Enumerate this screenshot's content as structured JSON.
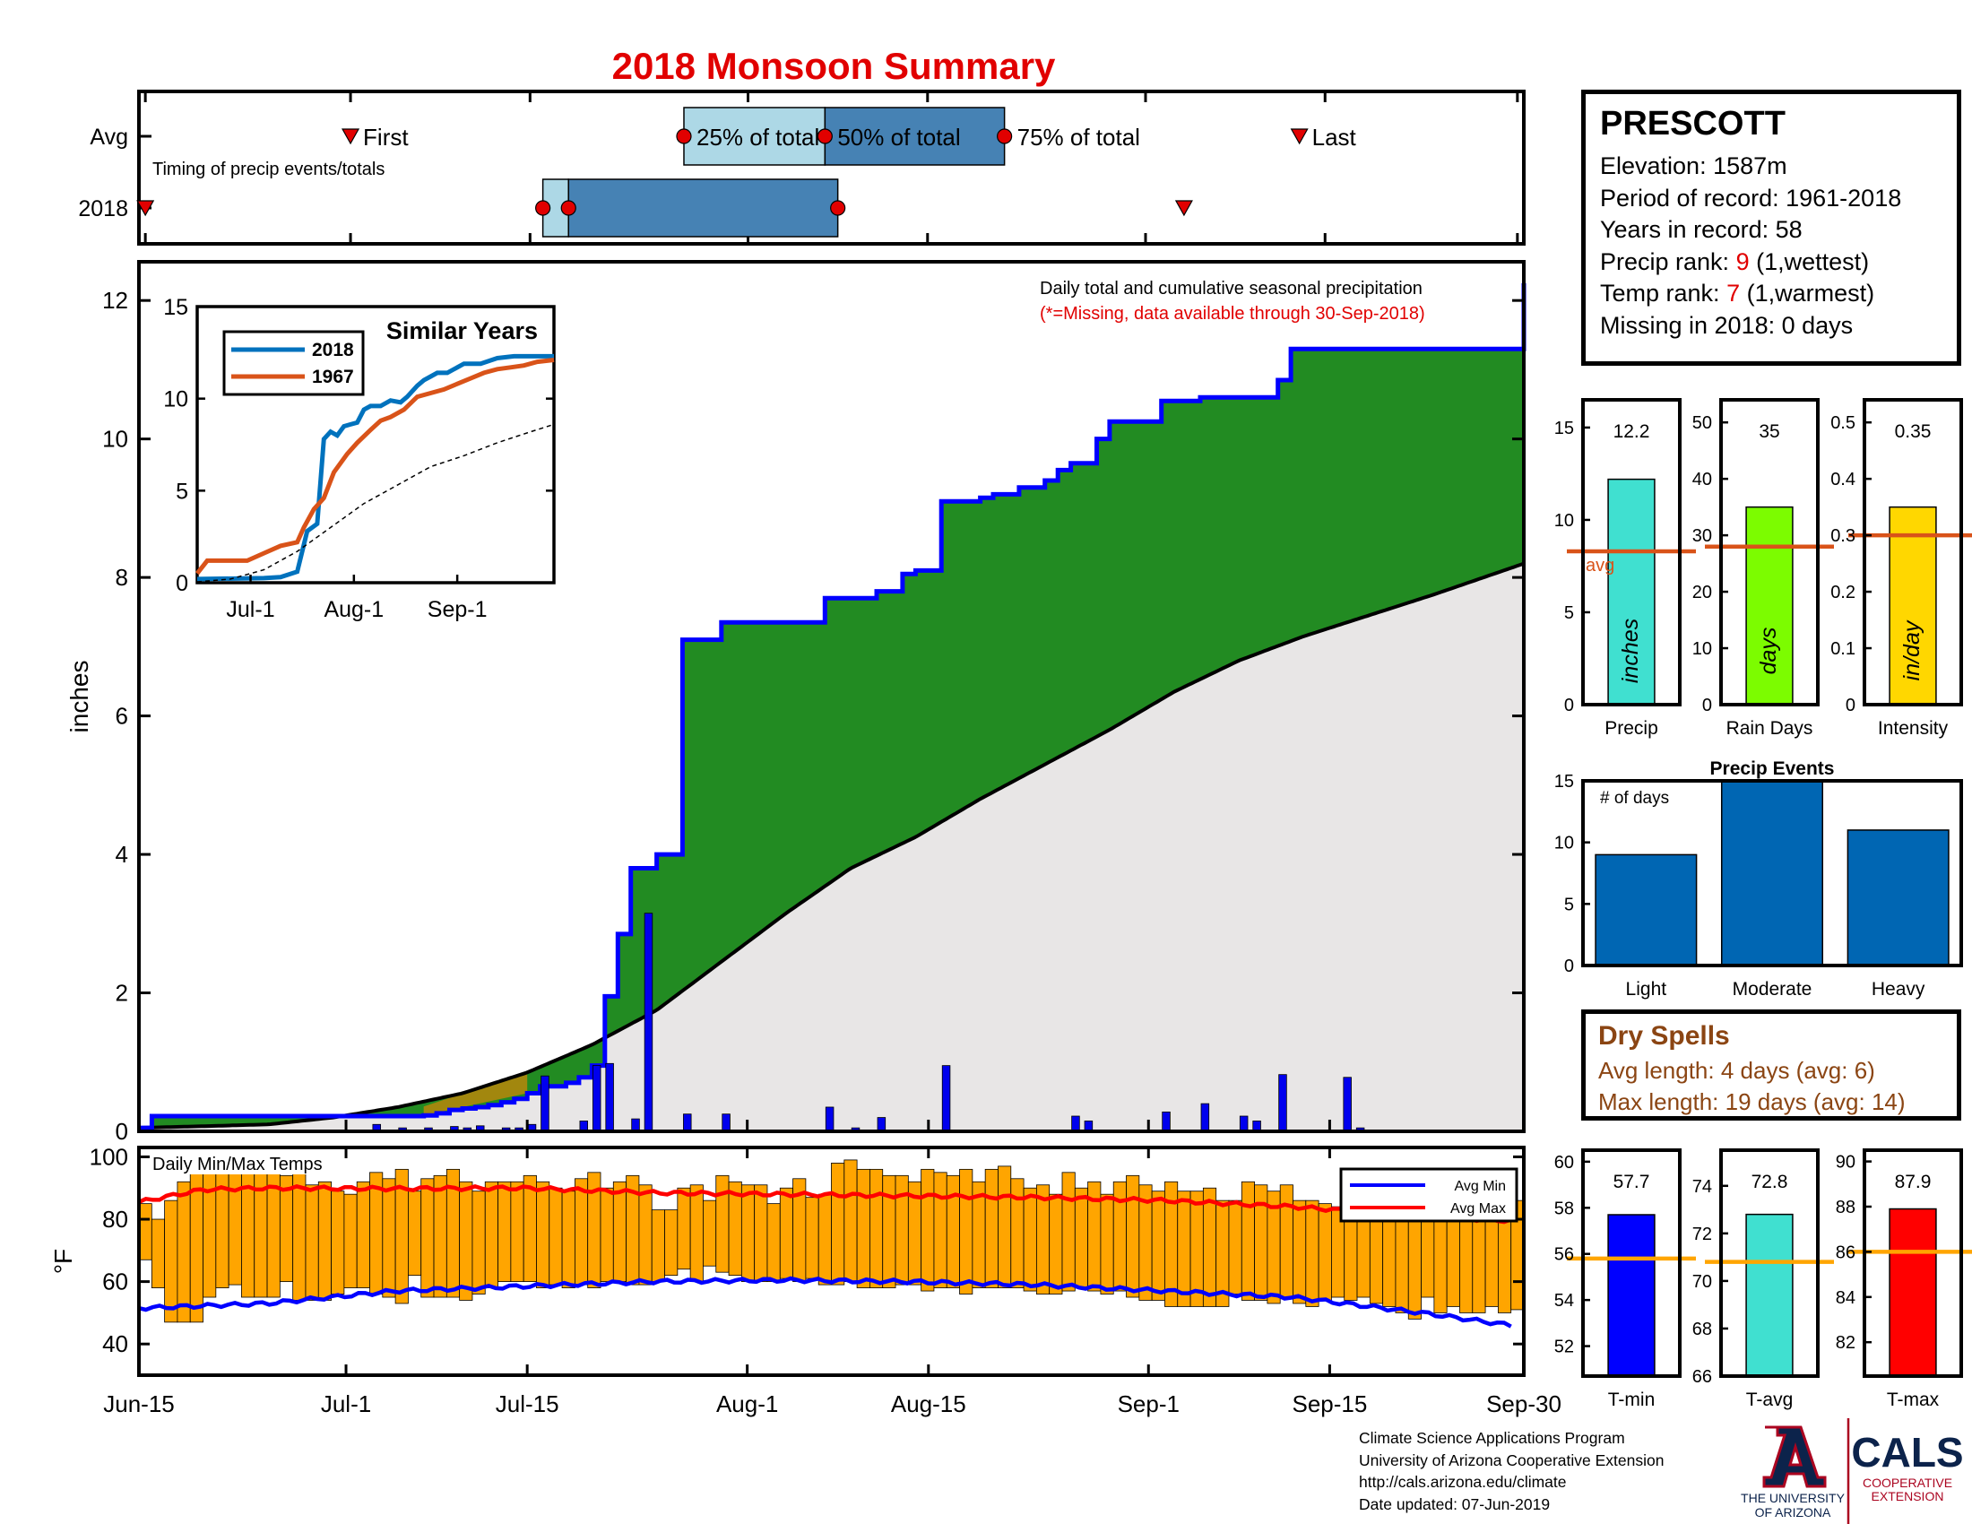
{
  "title": "2018 Monsoon Summary",
  "station": {
    "name": "PRESCOTT",
    "elevation": "Elevation: 1587m",
    "period": "Period of record: 1961-2018",
    "years": "Years in record: 58",
    "precip_rank_label": "Precip rank: ",
    "precip_rank": "9",
    "precip_rank_note": " (1,wettest)",
    "temp_rank_label": "Temp rank: ",
    "temp_rank": "7",
    "temp_rank_note": " (1,warmest)",
    "missing": "Missing in 2018: 0 days"
  },
  "colors": {
    "title_red": "#e10000",
    "green": "#228b22",
    "blue": "#0000ff",
    "orange": "#ffa500",
    "brown": "#8b4513",
    "bar_blue": "#0066b3",
    "light_blue": "#add8e6",
    "steel": "#4682b4"
  },
  "timing": {
    "row_labels": [
      "Avg",
      "2018"
    ],
    "note": "Timing of precip events/totals",
    "first_label": "First",
    "last_label": "Last",
    "p25_label": "25% of total",
    "p50_label": "50% of total",
    "p75_label": "75% of total",
    "avg": {
      "first": "Jul-1",
      "p25": "Jul-27",
      "p50": "Aug-7",
      "p75": "Aug-21",
      "last": "Sep-13"
    },
    "y2018": {
      "first": "Jun-15",
      "p25": "Jul-16",
      "p50": "Jul-18",
      "p75": "Aug-8",
      "last": "Sep-4"
    }
  },
  "main_chart": {
    "ylabel": "inches",
    "yticks": [
      0,
      2,
      4,
      6,
      8,
      10,
      12
    ],
    "xticks": [
      "Jun-15",
      "Jul-1",
      "Jul-15",
      "Aug-1",
      "Aug-15",
      "Sep-1",
      "Sep-15",
      "Sep-30"
    ],
    "note1": "Daily total and cumulative seasonal precipitation",
    "note2": "(*=Missing, data available through 30-Sep-2018)"
  },
  "chart_data": [
    {
      "type": "area",
      "title": "Daily total and cumulative seasonal precipitation",
      "ylabel": "inches",
      "ylim": [
        0,
        12.2
      ],
      "x_range": [
        "Jun-15",
        "Sep-30"
      ],
      "series": [
        {
          "name": "2018 cumulative",
          "x": [
            0,
            1,
            2,
            17,
            21,
            22,
            23,
            24,
            25,
            26,
            27,
            28,
            29,
            30,
            31,
            33,
            34,
            35,
            36,
            37,
            38,
            39,
            40,
            42,
            45,
            53,
            57,
            59,
            60,
            61,
            62,
            64,
            65,
            66,
            68,
            70,
            71,
            72,
            74,
            75,
            78,
            79,
            80,
            82,
            88,
            89,
            90,
            107
          ],
          "values": [
            0.05,
            0.22,
            0.22,
            0.22,
            0.22,
            0.23,
            0.26,
            0.31,
            0.33,
            0.35,
            0.38,
            0.42,
            0.47,
            0.55,
            0.65,
            0.7,
            0.78,
            0.95,
            1.95,
            2.85,
            3.8,
            3.8,
            4.0,
            7.1,
            7.35,
            7.7,
            7.8,
            8.05,
            8.1,
            8.1,
            9.1,
            9.1,
            9.15,
            9.2,
            9.3,
            9.4,
            9.55,
            9.65,
            10.0,
            10.25,
            10.25,
            10.55,
            10.55,
            10.6,
            10.85,
            11.3,
            11.3,
            12.25
          ]
        },
        {
          "name": "Average cumulative",
          "x": [
            0,
            10,
            15,
            20,
            25,
            30,
            35,
            40,
            45,
            50,
            55,
            60,
            65,
            70,
            75,
            80,
            85,
            90,
            95,
            100,
            107
          ],
          "values": [
            0.05,
            0.1,
            0.2,
            0.35,
            0.55,
            0.85,
            1.25,
            1.75,
            2.45,
            3.15,
            3.8,
            4.25,
            4.8,
            5.3,
            5.8,
            6.35,
            6.8,
            7.15,
            7.45,
            7.75,
            8.2
          ]
        },
        {
          "name": "Daily precip",
          "x": [
            18,
            20,
            22,
            24,
            25,
            26,
            28,
            29,
            30,
            31,
            34,
            35,
            36,
            38,
            39,
            42,
            45,
            53,
            55,
            57,
            62,
            72,
            73,
            79,
            82,
            85,
            86,
            88,
            93,
            94
          ],
          "values": [
            0.1,
            0.05,
            0.05,
            0.07,
            0.05,
            0.08,
            0.05,
            0.05,
            0.1,
            0.8,
            0.15,
            0.95,
            0.98,
            0.18,
            3.15,
            0.25,
            0.25,
            0.35,
            0.05,
            0.2,
            0.95,
            0.22,
            0.15,
            0.28,
            0.4,
            0.22,
            0.15,
            0.82,
            0.78,
            0.05
          ]
        }
      ]
    },
    {
      "type": "line",
      "title": "Similar Years",
      "ylim": [
        0,
        15
      ],
      "xticks": [
        "Jul-1",
        "Aug-1",
        "Sep-1"
      ],
      "series": [
        {
          "name": "2018",
          "x": [
            0,
            20,
            25,
            30,
            33,
            36,
            38,
            40,
            42,
            44,
            46,
            48,
            50,
            52,
            55,
            58,
            61,
            63,
            66,
            68,
            70,
            72,
            75,
            80,
            85,
            90,
            95,
            107
          ],
          "values": [
            0.2,
            0.25,
            0.3,
            0.6,
            2.8,
            3.2,
            7.8,
            8.2,
            8.0,
            8.5,
            8.6,
            8.7,
            9.4,
            9.6,
            9.6,
            9.9,
            9.8,
            10.1,
            10.7,
            11.0,
            11.2,
            11.4,
            11.4,
            11.9,
            11.9,
            12.2,
            12.3,
            12.3
          ]
        },
        {
          "name": "1967",
          "x": [
            0,
            3,
            8,
            15,
            20,
            25,
            30,
            32,
            35,
            38,
            41,
            45,
            48,
            52,
            55,
            58,
            62,
            66,
            70,
            74,
            78,
            82,
            86,
            90,
            94,
            98,
            102,
            107
          ],
          "values": [
            0.5,
            1.2,
            1.2,
            1.2,
            1.6,
            2.0,
            2.2,
            3.0,
            4.0,
            4.6,
            6.0,
            7.0,
            7.6,
            8.3,
            8.8,
            9.0,
            9.4,
            10.1,
            10.3,
            10.5,
            10.8,
            11.1,
            11.4,
            11.6,
            11.7,
            11.8,
            12.0,
            12.1
          ]
        },
        {
          "name": "Average",
          "x": [
            0,
            10,
            20,
            30,
            40,
            50,
            60,
            70,
            80,
            90,
            100,
            107
          ],
          "values": [
            0.05,
            0.2,
            0.7,
            1.7,
            3.0,
            4.3,
            5.3,
            6.3,
            6.9,
            7.6,
            8.2,
            8.6
          ]
        }
      ]
    },
    {
      "type": "bar",
      "title": "Daily Min/Max Temps",
      "ylabel": "°F",
      "ylim": [
        30,
        103
      ],
      "yticks": [
        40,
        60,
        80,
        100
      ],
      "legend": [
        "Avg Min",
        "Avg Max"
      ],
      "legend_position": "top-right",
      "series": [
        {
          "name": "Daily Max",
          "values": [
            85,
            80,
            86,
            92,
            97,
            98,
            96,
            95,
            99,
            96,
            97,
            94,
            95,
            91,
            92,
            89,
            88,
            92,
            95,
            93,
            96,
            89,
            93,
            94,
            96,
            92,
            89,
            92,
            92,
            92,
            94,
            92,
            90,
            89,
            93,
            95,
            90,
            92,
            94,
            91,
            83,
            83,
            90,
            91,
            86,
            94,
            92,
            91,
            91,
            85,
            90,
            93,
            87,
            88,
            98,
            99,
            96,
            96,
            94,
            94,
            92,
            96,
            95,
            94,
            96,
            92,
            96,
            97,
            93,
            90,
            91,
            88,
            95,
            90,
            92,
            88,
            92,
            94,
            91,
            89,
            92,
            89,
            89,
            90,
            86,
            86,
            92,
            91,
            89,
            91,
            86,
            86,
            85,
            84,
            87,
            88,
            89,
            89,
            87,
            92,
            88,
            86,
            88,
            86,
            85,
            89,
            84,
            86
          ]
        },
        {
          "name": "Daily Min",
          "values": [
            67,
            58,
            47,
            47,
            47,
            55,
            58,
            59,
            55,
            55,
            55,
            60,
            54,
            54,
            54,
            56,
            58,
            58,
            56,
            55,
            53,
            62,
            55,
            55,
            55,
            54,
            56,
            58,
            60,
            60,
            60,
            58,
            59,
            58,
            59,
            58,
            60,
            60,
            59,
            59,
            60,
            62,
            64,
            60,
            65,
            63,
            62,
            60,
            60,
            60,
            61,
            60,
            61,
            59,
            59,
            60,
            58,
            58,
            58,
            59,
            59,
            57,
            58,
            58,
            56,
            58,
            58,
            58,
            58,
            57,
            56,
            56,
            57,
            58,
            57,
            56,
            57,
            55,
            54,
            54,
            52,
            52,
            52,
            52,
            52,
            56,
            54,
            54,
            53,
            55,
            53,
            52,
            54,
            55,
            54,
            55,
            53,
            52,
            50,
            48,
            55,
            50,
            52,
            50,
            50,
            52,
            50,
            51
          ]
        },
        {
          "name": "Avg Max",
          "x": [
            0,
            5,
            10,
            20,
            30,
            40,
            50,
            60,
            70,
            80,
            90,
            100,
            107
          ],
          "values": [
            85.5,
            89.5,
            90,
            89.8,
            90,
            88.5,
            88,
            87.5,
            87,
            86,
            84,
            81,
            79.5
          ]
        },
        {
          "name": "Avg Min",
          "x": [
            0,
            10,
            20,
            30,
            40,
            50,
            60,
            70,
            80,
            90,
            100,
            107
          ],
          "values": [
            51.5,
            53,
            57,
            58.5,
            60,
            60.5,
            60,
            59,
            57,
            55,
            50,
            46
          ]
        }
      ]
    },
    {
      "type": "bar",
      "title": "Precip",
      "categories": [
        "Precip"
      ],
      "values": [
        12.2
      ],
      "label": "12.2",
      "unit_label": "inches",
      "avg": 8.3,
      "ylim": [
        0,
        16.5
      ],
      "yticks": [
        0,
        5,
        10,
        15
      ]
    },
    {
      "type": "bar",
      "title": "Rain Days",
      "categories": [
        "Rain Days"
      ],
      "values": [
        35
      ],
      "label": "35",
      "unit_label": "days",
      "avg": 28,
      "ylim": [
        0,
        54
      ],
      "yticks": [
        0,
        10,
        20,
        30,
        40,
        50
      ]
    },
    {
      "type": "bar",
      "title": "Intensity",
      "categories": [
        "Intensity"
      ],
      "values": [
        0.35
      ],
      "label": "0.35",
      "unit_label": "in/day",
      "avg": 0.3,
      "ylim": [
        0,
        0.54
      ],
      "yticks": [
        0,
        0.1,
        0.2,
        0.3,
        0.4,
        0.5
      ]
    },
    {
      "type": "bar",
      "title": "Precip Events",
      "categories": [
        "Light",
        "Moderate",
        "Heavy"
      ],
      "values": [
        9,
        15,
        11
      ],
      "ylim": [
        0,
        15
      ],
      "yticks": [
        0,
        5,
        10,
        15
      ],
      "annotation": "# of days"
    },
    {
      "type": "bar",
      "title": "T-min",
      "categories": [
        "T-min"
      ],
      "values": [
        57.7
      ],
      "label": "57.7",
      "avg": 55.8,
      "ylim": [
        50.7,
        60.5
      ],
      "yticks": [
        52,
        54,
        56,
        58,
        60
      ]
    },
    {
      "type": "bar",
      "title": "T-avg",
      "categories": [
        "T-avg"
      ],
      "values": [
        72.8
      ],
      "label": "72.8",
      "avg": 70.8,
      "ylim": [
        66,
        75.5
      ],
      "yticks": [
        66,
        68,
        70,
        72,
        74
      ]
    },
    {
      "type": "bar",
      "title": "T-max",
      "categories": [
        "T-max"
      ],
      "values": [
        87.9
      ],
      "label": "87.9",
      "avg": 86,
      "ylim": [
        80.5,
        90.5
      ],
      "yticks": [
        82,
        84,
        86,
        88,
        90
      ]
    }
  ],
  "inset": {
    "title": "Similar Years",
    "legend": [
      "2018",
      "1967"
    ],
    "yticks": [
      0,
      5,
      10,
      15
    ],
    "xticks": [
      "Jul-1",
      "Aug-1",
      "Sep-1"
    ]
  },
  "temp": {
    "label": "Daily Min/Max Temps",
    "ylabel": "°F",
    "yticks": [
      40,
      60,
      80,
      100
    ],
    "legend": [
      "Avg Min",
      "Avg Max"
    ]
  },
  "stats": {
    "precip": {
      "title": "Precip",
      "value": "12.2",
      "unit": "inches",
      "avg_label": "avg",
      "yticks": [
        "0",
        "5",
        "10",
        "15"
      ]
    },
    "raindays": {
      "title": "Rain Days",
      "value": "35",
      "unit": "days",
      "yticks": [
        "0",
        "10",
        "20",
        "30",
        "40",
        "50"
      ]
    },
    "intensity": {
      "title": "Intensity",
      "value": "0.35",
      "unit": "in/day",
      "yticks": [
        "0",
        "0.1",
        "0.2",
        "0.3",
        "0.4",
        "0.5"
      ]
    }
  },
  "events": {
    "title": "Precip Events",
    "note": "# of days",
    "categories": [
      "Light",
      "Moderate",
      "Heavy"
    ],
    "yticks": [
      "0",
      "5",
      "10",
      "15"
    ]
  },
  "dry_spells": {
    "title": "Dry Spells",
    "avg_length": "Avg length: 4 days (avg: 6)",
    "max_length": "Max length: 19 days (avg: 14)"
  },
  "temps": {
    "tmin": {
      "title": "T-min",
      "value": "57.7",
      "yticks": [
        "52",
        "54",
        "56",
        "58",
        "60"
      ]
    },
    "tavg": {
      "title": "T-avg",
      "value": "72.8",
      "yticks": [
        "66",
        "68",
        "70",
        "72",
        "74"
      ]
    },
    "tmax": {
      "title": "T-max",
      "value": "87.9",
      "yticks": [
        "82",
        "84",
        "86",
        "88",
        "90"
      ]
    }
  },
  "credits": {
    "line1": "Climate Science Applications Program",
    "line2": "University of Arizona Cooperative Extension",
    "line3": "http://cals.arizona.edu/climate",
    "line4": " Date updated: 07-Jun-2019"
  },
  "logos": {
    "ua_line1": "THE UNIVERSITY",
    "ua_line2": "OF ARIZONA",
    "cals": "CALS",
    "cals_sub1": "COOPERATIVE",
    "cals_sub2": "EXTENSION"
  }
}
